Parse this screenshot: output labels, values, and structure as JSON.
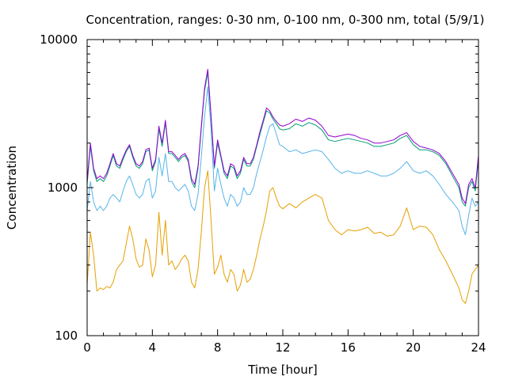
{
  "chart_data": {
    "type": "line",
    "title": "Concentration, ranges: 0-30 nm, 0-100 nm, 0-300 nm, total (5/9/1)",
    "xlabel": "Time [hour]",
    "ylabel": "Concentration",
    "xlim": [
      0,
      24
    ],
    "ylim": [
      100,
      10000
    ],
    "yscale": "log",
    "grid": false,
    "legend": "none",
    "x_ticks": [
      0,
      4,
      8,
      12,
      16,
      20,
      24
    ],
    "x_tick_labels": [
      "0",
      "4",
      "8",
      "12",
      "16",
      "20",
      "24"
    ],
    "y_ticks": [
      100,
      1000,
      10000
    ],
    "y_tick_labels": [
      "100",
      "1000",
      "10000"
    ],
    "series": [
      {
        "color": "#e69f00",
        "x": [
          0,
          0.2,
          0.4,
          0.6,
          0.8,
          1,
          1.2,
          1.4,
          1.6,
          1.8,
          2,
          2.2,
          2.4,
          2.6,
          2.8,
          3,
          3.2,
          3.4,
          3.6,
          3.8,
          4,
          4.2,
          4.4,
          4.6,
          4.8,
          5,
          5.2,
          5.4,
          5.6,
          5.8,
          6,
          6.2,
          6.4,
          6.6,
          6.8,
          7,
          7.2,
          7.4,
          7.6,
          7.8,
          8,
          8.2,
          8.4,
          8.6,
          8.8,
          9,
          9.2,
          9.4,
          9.6,
          9.8,
          10,
          10.2,
          10.4,
          10.6,
          10.8,
          11,
          11.2,
          11.4,
          11.6,
          11.8,
          12,
          12.4,
          12.8,
          13.2,
          13.6,
          14,
          14.4,
          14.8,
          15.2,
          15.6,
          16,
          16.4,
          16.8,
          17.2,
          17.6,
          18,
          18.4,
          18.8,
          19.2,
          19.6,
          20,
          20.4,
          20.8,
          21.2,
          21.6,
          22,
          22.4,
          22.8,
          23,
          23.2,
          23.4,
          23.6,
          23.8,
          24
        ],
        "values": [
          220,
          500,
          350,
          200,
          210,
          205,
          215,
          210,
          230,
          280,
          300,
          320,
          420,
          550,
          450,
          330,
          290,
          300,
          450,
          380,
          250,
          300,
          680,
          350,
          600,
          300,
          320,
          280,
          300,
          330,
          350,
          320,
          230,
          210,
          280,
          500,
          1000,
          1300,
          600,
          260,
          290,
          350,
          260,
          230,
          280,
          260,
          200,
          220,
          280,
          230,
          240,
          280,
          350,
          450,
          550,
          700,
          950,
          1000,
          850,
          750,
          720,
          780,
          730,
          800,
          850,
          900,
          850,
          600,
          520,
          480,
          520,
          510,
          520,
          540,
          490,
          500,
          470,
          480,
          550,
          730,
          520,
          550,
          540,
          480,
          380,
          320,
          260,
          210,
          175,
          165,
          200,
          260,
          280,
          300
        ]
      },
      {
        "color": "#56b4e9",
        "x": [
          0,
          0.2,
          0.4,
          0.6,
          0.8,
          1,
          1.2,
          1.4,
          1.6,
          1.8,
          2,
          2.2,
          2.4,
          2.6,
          2.8,
          3,
          3.2,
          3.4,
          3.6,
          3.8,
          4,
          4.2,
          4.4,
          4.6,
          4.8,
          5,
          5.2,
          5.4,
          5.6,
          5.8,
          6,
          6.2,
          6.4,
          6.6,
          6.8,
          7,
          7.2,
          7.4,
          7.6,
          7.8,
          8,
          8.2,
          8.4,
          8.6,
          8.8,
          9,
          9.2,
          9.4,
          9.6,
          9.8,
          10,
          10.2,
          10.4,
          10.6,
          10.8,
          11,
          11.2,
          11.4,
          11.6,
          11.8,
          12,
          12.4,
          12.8,
          13.2,
          13.6,
          14,
          14.4,
          14.8,
          15.2,
          15.6,
          16,
          16.4,
          16.8,
          17.2,
          17.6,
          18,
          18.4,
          18.8,
          19.2,
          19.6,
          20,
          20.4,
          20.8,
          21.2,
          21.6,
          22,
          22.4,
          22.8,
          23,
          23.2,
          23.4,
          23.6,
          23.8,
          24
        ],
        "values": [
          700,
          1100,
          800,
          700,
          750,
          700,
          750,
          850,
          900,
          850,
          800,
          950,
          1100,
          1200,
          1050,
          900,
          850,
          900,
          1100,
          1150,
          850,
          950,
          1600,
          1200,
          1700,
          1100,
          1100,
          1000,
          950,
          1000,
          1050,
          950,
          750,
          700,
          900,
          1600,
          3000,
          4800,
          2500,
          950,
          1350,
          1050,
          850,
          750,
          900,
          850,
          750,
          800,
          1000,
          900,
          900,
          1000,
          1250,
          1500,
          1800,
          2200,
          2600,
          2700,
          2300,
          1950,
          1900,
          1750,
          1800,
          1700,
          1750,
          1800,
          1750,
          1550,
          1350,
          1250,
          1300,
          1250,
          1250,
          1300,
          1250,
          1200,
          1200,
          1250,
          1350,
          1500,
          1300,
          1250,
          1300,
          1200,
          1050,
          900,
          800,
          700,
          550,
          480,
          650,
          850,
          750,
          800
        ]
      },
      {
        "color": "#009e73",
        "x": [
          0,
          0.2,
          0.4,
          0.6,
          0.8,
          1,
          1.2,
          1.4,
          1.6,
          1.8,
          2,
          2.2,
          2.4,
          2.6,
          2.8,
          3,
          3.2,
          3.4,
          3.6,
          3.8,
          4,
          4.2,
          4.4,
          4.6,
          4.8,
          5,
          5.2,
          5.4,
          5.6,
          5.8,
          6,
          6.2,
          6.4,
          6.6,
          6.8,
          7,
          7.2,
          7.4,
          7.6,
          7.8,
          8,
          8.2,
          8.4,
          8.6,
          8.8,
          9,
          9.2,
          9.4,
          9.6,
          9.8,
          10,
          10.2,
          10.4,
          10.6,
          10.8,
          11,
          11.2,
          11.4,
          11.6,
          11.8,
          12,
          12.4,
          12.8,
          13.2,
          13.6,
          14,
          14.4,
          14.8,
          15.2,
          15.6,
          16,
          16.4,
          16.8,
          17.2,
          17.6,
          18,
          18.4,
          18.8,
          19.2,
          19.6,
          20,
          20.4,
          20.8,
          21.2,
          21.6,
          22,
          22.4,
          22.8,
          23,
          23.2,
          23.4,
          23.6,
          23.8,
          24
        ],
        "values": [
          1050,
          1900,
          1300,
          1100,
          1150,
          1100,
          1200,
          1400,
          1650,
          1400,
          1350,
          1550,
          1750,
          1900,
          1600,
          1400,
          1350,
          1450,
          1750,
          1800,
          1300,
          1500,
          2500,
          1900,
          2750,
          1700,
          1700,
          1600,
          1500,
          1600,
          1650,
          1500,
          1100,
          1000,
          1350,
          2500,
          4500,
          6000,
          3000,
          1350,
          2000,
          1600,
          1250,
          1150,
          1400,
          1350,
          1150,
          1250,
          1550,
          1400,
          1400,
          1550,
          1900,
          2300,
          2750,
          3300,
          3200,
          2900,
          2700,
          2500,
          2450,
          2500,
          2700,
          2600,
          2750,
          2650,
          2450,
          2100,
          2050,
          2100,
          2150,
          2100,
          2050,
          2000,
          1900,
          1900,
          1950,
          2000,
          2150,
          2250,
          1950,
          1800,
          1800,
          1750,
          1650,
          1450,
          1200,
          1000,
          800,
          750,
          1000,
          1100,
          950,
          1550
        ]
      },
      {
        "color": "#9400d3",
        "x": [
          0,
          0.2,
          0.4,
          0.6,
          0.8,
          1,
          1.2,
          1.4,
          1.6,
          1.8,
          2,
          2.2,
          2.4,
          2.6,
          2.8,
          3,
          3.2,
          3.4,
          3.6,
          3.8,
          4,
          4.2,
          4.4,
          4.6,
          4.8,
          5,
          5.2,
          5.4,
          5.6,
          5.8,
          6,
          6.2,
          6.4,
          6.6,
          6.8,
          7,
          7.2,
          7.4,
          7.6,
          7.8,
          8,
          8.2,
          8.4,
          8.6,
          8.8,
          9,
          9.2,
          9.4,
          9.6,
          9.8,
          10,
          10.2,
          10.4,
          10.6,
          10.8,
          11,
          11.2,
          11.4,
          11.6,
          11.8,
          12,
          12.4,
          12.8,
          13.2,
          13.6,
          14,
          14.4,
          14.8,
          15.2,
          15.6,
          16,
          16.4,
          16.8,
          17.2,
          17.6,
          18,
          18.4,
          18.8,
          19.2,
          19.6,
          20,
          20.4,
          20.8,
          21.2,
          21.6,
          22,
          22.4,
          22.8,
          23,
          23.2,
          23.4,
          23.6,
          23.8,
          24
        ],
        "values": [
          1100,
          2000,
          1350,
          1150,
          1200,
          1150,
          1250,
          1450,
          1700,
          1450,
          1400,
          1600,
          1800,
          1950,
          1650,
          1450,
          1400,
          1500,
          1800,
          1850,
          1350,
          1550,
          2600,
          2000,
          2850,
          1750,
          1750,
          1650,
          1550,
          1650,
          1700,
          1550,
          1150,
          1050,
          1400,
          2600,
          4700,
          6300,
          3100,
          1400,
          2100,
          1650,
          1300,
          1200,
          1450,
          1400,
          1200,
          1300,
          1600,
          1450,
          1450,
          1600,
          1950,
          2400,
          2850,
          3450,
          3300,
          3000,
          2800,
          2650,
          2600,
          2700,
          2900,
          2800,
          2950,
          2850,
          2600,
          2250,
          2200,
          2250,
          2300,
          2250,
          2150,
          2100,
          2000,
          2000,
          2050,
          2100,
          2250,
          2350,
          2050,
          1900,
          1850,
          1800,
          1700,
          1500,
          1250,
          1050,
          850,
          780,
          1050,
          1150,
          1000,
          1650
        ]
      }
    ]
  }
}
